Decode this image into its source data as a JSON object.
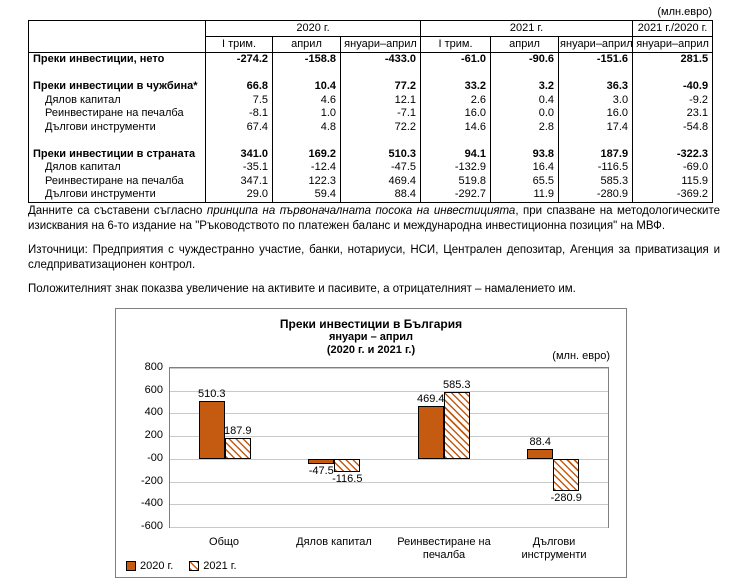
{
  "unit_note": "(млн.евро)",
  "table": {
    "col_groups": [
      {
        "label": "2020 г."
      },
      {
        "label": "2021 г."
      },
      {
        "label": "2021 г./2020 г."
      }
    ],
    "sub_cols": [
      "I трим.",
      "април",
      "януари–април",
      "I трим.",
      "април",
      "януари–април",
      "януари–април"
    ],
    "rows": [
      {
        "label": "Преки инвестиции, нето",
        "bold": true,
        "values": [
          "-274.2",
          "-158.8",
          "-433.0",
          "-61.0",
          "-90.6",
          "-151.6",
          "281.5"
        ]
      },
      {
        "label": "",
        "values": [
          "",
          "",
          "",
          "",
          "",
          "",
          ""
        ]
      },
      {
        "label": "Преки инвестиции в чужбина*",
        "bold": true,
        "values": [
          "66.8",
          "10.4",
          "77.2",
          "33.2",
          "3.2",
          "36.3",
          "-40.9"
        ]
      },
      {
        "label": "Дялов капитал",
        "indent": true,
        "values": [
          "7.5",
          "4.6",
          "12.1",
          "2.6",
          "0.4",
          "3.0",
          "-9.2"
        ]
      },
      {
        "label": "Реинвестиране на печалба",
        "indent": true,
        "values": [
          "-8.1",
          "1.0",
          "-7.1",
          "16.0",
          "0.0",
          "16.0",
          "23.1"
        ]
      },
      {
        "label": "Дългови инструменти",
        "indent": true,
        "values": [
          "67.4",
          "4.8",
          "72.2",
          "14.6",
          "2.8",
          "17.4",
          "-54.8"
        ]
      },
      {
        "label": "",
        "values": [
          "",
          "",
          "",
          "",
          "",
          "",
          ""
        ]
      },
      {
        "label": "Преки инвестиции в страната",
        "bold": true,
        "values": [
          "341.0",
          "169.2",
          "510.3",
          "94.1",
          "93.8",
          "187.9",
          "-322.3"
        ]
      },
      {
        "label": "Дялов капитал",
        "indent": true,
        "values": [
          "-35.1",
          "-12.4",
          "-47.5",
          "-132.9",
          "16.4",
          "-116.5",
          "-69.0"
        ]
      },
      {
        "label": "Реинвестиране на печалба",
        "indent": true,
        "values": [
          "347.1",
          "122.3",
          "469.4",
          "519.8",
          "65.5",
          "585.3",
          "115.9"
        ]
      },
      {
        "label": "Дългови инструменти",
        "indent": true,
        "values": [
          "29.0",
          "59.4",
          "88.4",
          "-292.7",
          "11.9",
          "-280.9",
          "-369.2"
        ]
      }
    ]
  },
  "notes": {
    "methodology_pre": "Данните са съставени съгласно ",
    "methodology_italic": "принципа на първоначалната посока на инвестицията",
    "methodology_post": ", при спазване на методологическите изисквания на 6-то издание на \"Ръководството по платежен баланс и международна инвестиционна позиция\" на МВФ.",
    "sources": "Източници: Предприятия с чуждестранно участие, банки, нотариуси, НСИ, Централен депозитар, Агенция за приватизация и следприватизационен контрол.",
    "sign_convention": "Положителният знак показва увеличение на активите и пасивите, а отрицателният – намалението им."
  },
  "chart_data": {
    "type": "bar",
    "title": "Преки инвестиции в България",
    "subtitle": "януари – април",
    "subtitle2": "(2020 г. и 2021 г.)",
    "unit": "(млн. евро)",
    "categories": [
      "Общо",
      "Дялов капитал",
      "Реинвестиране на печалба",
      "Дългови инструменти"
    ],
    "series": [
      {
        "name": "2020 г.",
        "style": "solid",
        "values": [
          510.3,
          -47.5,
          469.4,
          88.4
        ]
      },
      {
        "name": "2021 г.",
        "style": "hatched",
        "values": [
          187.9,
          -116.5,
          585.3,
          -280.9
        ]
      }
    ],
    "ylim": [
      -600,
      800
    ],
    "ytick_step": 200,
    "ytick_labels": [
      "800",
      "600",
      "400",
      "200",
      "-00",
      "-200",
      "-400",
      "-600"
    ],
    "grid": true,
    "legend_position": "bottom-left",
    "colors": {
      "bar": "#C55A11",
      "grid": "#c9c9c9"
    }
  }
}
